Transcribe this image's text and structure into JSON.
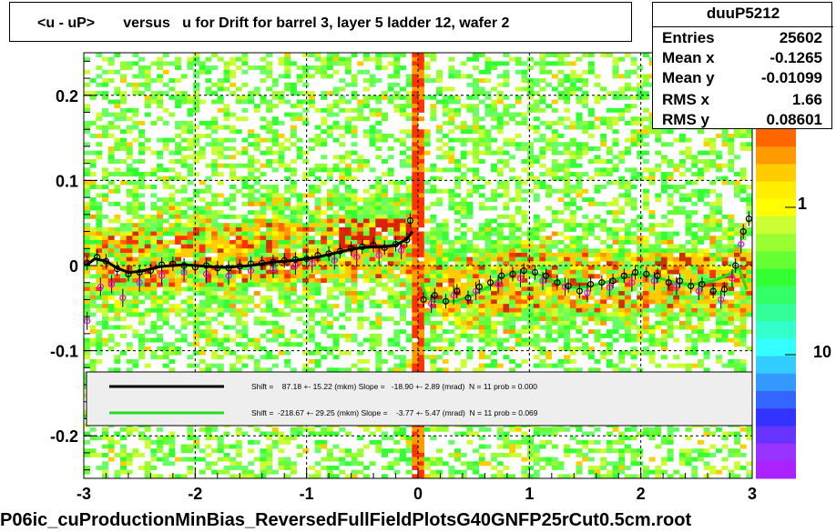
{
  "title": "<u - uP>       versus   u for Drift for barrel 3, layer 5 ladder 12, wafer 2",
  "footer": "P06ic_cuProductionMinBias_ReversedFullFieldPlotsG40GNFP25rCut0.5cm.root",
  "stats": {
    "name": "duuP5212",
    "rows": [
      {
        "label": "Entries",
        "value": "25602"
      },
      {
        "label": "Mean x",
        "value": "-0.1265"
      },
      {
        "label": "Mean y",
        "value": "-0.01099"
      },
      {
        "label": "RMS x",
        "value": "1.66"
      },
      {
        "label": "RMS y",
        "value": "0.08601"
      }
    ]
  },
  "colors": {
    "fit_black": "#000000",
    "fit_green": "#22dd22",
    "legend_bg": "#eeeeee",
    "profile_marker": "#000000",
    "secondary_marker": "#ff00ff"
  },
  "chart_data": {
    "type": "heatmap",
    "title": "<u - uP>       versus   u for Drift for barrel 3, layer 5 ladder 12, wafer 2",
    "xlabel": "",
    "ylabel": "",
    "xlim": [
      -3,
      3
    ],
    "ylim": [
      -0.25,
      0.25
    ],
    "x_ticks": [
      "-3",
      "-2",
      "-1",
      "0",
      "1",
      "2",
      "3"
    ],
    "y_ticks": [
      "-0.2",
      "-0.1",
      "0",
      "0.1",
      "0.2"
    ],
    "grid": true,
    "z_scale_labels": [
      "1",
      "10"
    ],
    "legend": [
      {
        "color": "black",
        "text": "Shift =    87.18 +- 15.22 (mkm) Slope =   -18.90 +- 2.89 (mrad)  N = 11 prob = 0.000"
      },
      {
        "color": "green",
        "text": "Shift =  -218.67 +- 29.25 (mkm) Slope =    -3.77 +- 5.47 (mrad)  N = 11 prob = 0.069"
      }
    ],
    "series": [
      {
        "name": "fit-left",
        "x": [
          -2.98,
          -2.9,
          -2.8,
          -2.7,
          -2.6,
          -2.5,
          -2.4,
          -2.3,
          -2.2,
          -2.1,
          -2.0,
          -1.9,
          -1.8,
          -1.7,
          -1.6,
          -1.5,
          -1.4,
          -1.3,
          -1.2,
          -1.1,
          -1.0,
          -0.9,
          -0.8,
          -0.7,
          -0.6,
          -0.5,
          -0.4,
          -0.3,
          -0.2,
          -0.1,
          -0.05
        ],
        "y": [
          0.0,
          0.008,
          0.005,
          -0.003,
          -0.008,
          -0.007,
          -0.004,
          -0.001,
          0.0,
          0.001,
          0.0,
          -0.001,
          -0.002,
          -0.002,
          -0.001,
          0.0,
          0.002,
          0.004,
          0.005,
          0.006,
          0.008,
          0.01,
          0.013,
          0.016,
          0.019,
          0.021,
          0.022,
          0.022,
          0.024,
          0.031,
          0.04
        ]
      },
      {
        "name": "fit-right",
        "x": [
          0.03,
          0.08,
          0.15,
          0.25,
          0.35,
          0.45,
          0.55,
          0.65,
          0.75,
          0.85,
          0.95,
          1.05,
          1.15,
          1.25,
          1.35,
          1.45,
          1.55,
          1.65,
          1.75,
          1.85,
          1.95,
          2.05,
          2.15,
          2.25,
          2.35,
          2.45,
          2.55,
          2.65,
          2.75,
          2.82,
          2.88,
          2.95
        ],
        "y": [
          -0.02,
          -0.038,
          -0.042,
          -0.043,
          -0.041,
          -0.037,
          -0.031,
          -0.023,
          -0.014,
          -0.008,
          -0.007,
          -0.009,
          -0.014,
          -0.02,
          -0.025,
          -0.026,
          -0.024,
          -0.021,
          -0.017,
          -0.013,
          -0.01,
          -0.011,
          -0.014,
          -0.018,
          -0.021,
          -0.022,
          -0.021,
          -0.018,
          -0.013,
          -0.008,
          -0.002,
          -0.028
        ]
      },
      {
        "name": "profile-points",
        "x": [
          -2.97,
          -2.88,
          -2.8,
          -2.7,
          -2.6,
          -2.5,
          -2.4,
          -2.3,
          -2.2,
          -2.1,
          -2.0,
          -1.9,
          -1.8,
          -1.7,
          -1.6,
          -1.5,
          -1.4,
          -1.3,
          -1.2,
          -1.1,
          -1.0,
          -0.9,
          -0.8,
          -0.7,
          -0.6,
          -0.5,
          -0.4,
          -0.3,
          -0.2,
          -0.1,
          -0.07,
          0.05,
          0.15,
          0.25,
          0.35,
          0.45,
          0.55,
          0.65,
          0.75,
          0.85,
          0.95,
          1.05,
          1.15,
          1.25,
          1.35,
          1.45,
          1.55,
          1.65,
          1.75,
          1.85,
          1.95,
          2.05,
          2.15,
          2.25,
          2.35,
          2.45,
          2.55,
          2.65,
          2.75,
          2.85,
          2.92,
          2.97
        ],
        "y": [
          0.003,
          0.01,
          0.005,
          -0.004,
          -0.01,
          -0.008,
          -0.006,
          0.001,
          0.002,
          0.0,
          -0.002,
          0.0,
          -0.003,
          -0.003,
          -0.001,
          0.002,
          0.003,
          0.004,
          0.006,
          0.007,
          0.008,
          0.012,
          0.014,
          0.017,
          0.02,
          0.022,
          0.024,
          0.021,
          0.025,
          0.03,
          0.053,
          -0.04,
          -0.035,
          -0.042,
          -0.03,
          -0.038,
          -0.025,
          -0.02,
          -0.012,
          -0.01,
          -0.006,
          -0.008,
          -0.012,
          -0.02,
          -0.024,
          -0.03,
          -0.022,
          -0.02,
          -0.018,
          -0.012,
          -0.008,
          -0.01,
          -0.012,
          -0.02,
          -0.018,
          -0.024,
          -0.022,
          -0.03,
          -0.028,
          0.0,
          0.04,
          0.055
        ]
      },
      {
        "name": "secondary-points",
        "x": [
          -2.97,
          -2.85,
          -2.75,
          -2.65,
          -2.5,
          -2.3,
          -2.1,
          -1.9,
          -1.7,
          -1.5,
          -1.3,
          -1.1,
          -0.95,
          -0.75,
          -0.55,
          -0.35,
          -0.15,
          0.12,
          0.32,
          0.52,
          0.72,
          0.92,
          1.12,
          1.32,
          1.52,
          1.72,
          1.92,
          2.12,
          2.32,
          2.52,
          2.72,
          2.82,
          2.9
        ],
        "y": [
          -0.065,
          -0.025,
          -0.022,
          -0.038,
          -0.02,
          -0.012,
          -0.008,
          -0.01,
          -0.012,
          -0.006,
          -0.004,
          0.0,
          0.002,
          0.006,
          0.01,
          0.012,
          0.018,
          -0.045,
          -0.035,
          -0.03,
          -0.022,
          -0.015,
          -0.018,
          -0.025,
          -0.032,
          -0.026,
          -0.02,
          -0.018,
          -0.024,
          -0.03,
          -0.04,
          -0.015,
          0.025
        ]
      }
    ]
  }
}
